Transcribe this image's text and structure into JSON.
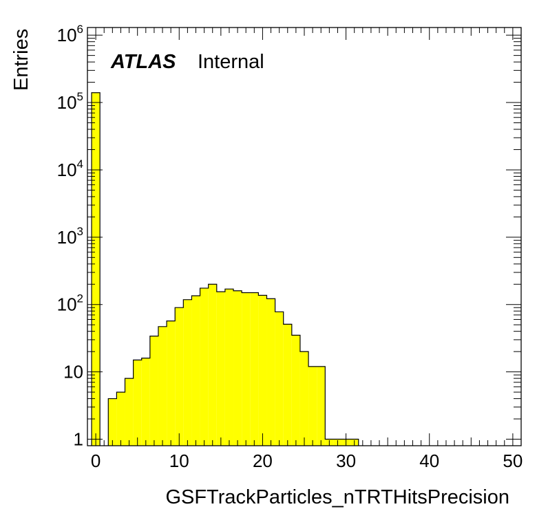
{
  "chart_data": {
    "type": "bar",
    "title": "",
    "xlabel": "GSFTrackParticles_nTRTHitsPrecision",
    "ylabel": "Entries",
    "xlim": [
      -1,
      51
    ],
    "ylim": [
      0.8,
      1300000
    ],
    "yscale": "log",
    "grid": false,
    "fill_color": "#ffff00",
    "edge_color": "#000000",
    "x_ticks": [
      {
        "value": 0,
        "label": "0"
      },
      {
        "value": 10,
        "label": "10"
      },
      {
        "value": 20,
        "label": "20"
      },
      {
        "value": 30,
        "label": "30"
      },
      {
        "value": 40,
        "label": "40"
      },
      {
        "value": 50,
        "label": "50"
      }
    ],
    "y_ticks": [
      {
        "value": 1,
        "base": "1",
        "exp": ""
      },
      {
        "value": 10,
        "base": "10",
        "exp": ""
      },
      {
        "value": 100,
        "base": "10",
        "exp": "2"
      },
      {
        "value": 1000,
        "base": "10",
        "exp": "3"
      },
      {
        "value": 10000,
        "base": "10",
        "exp": "4"
      },
      {
        "value": 100000,
        "base": "10",
        "exp": "5"
      },
      {
        "value": 1000000,
        "base": "10",
        "exp": "6"
      }
    ],
    "bin_edges": [
      -0.5,
      0.5,
      1.5,
      2.5,
      3.5,
      4.5,
      5.5,
      6.5,
      7.5,
      8.5,
      9.5,
      10.5,
      11.5,
      12.5,
      13.5,
      14.5,
      15.5,
      16.5,
      17.5,
      18.5,
      19.5,
      20.5,
      21.5,
      22.5,
      23.5,
      24.5,
      25.5,
      26.5,
      27.5,
      28.5,
      29.5,
      30.5,
      31.5,
      32.5,
      33.5,
      34.5,
      35.5,
      36.5,
      37.5,
      38.5,
      39.5,
      40.5,
      41.5,
      42.5,
      43.5,
      44.5,
      45.5,
      46.5,
      47.5,
      48.5,
      49.5,
      50.5
    ],
    "values": [
      140000,
      0,
      4,
      5,
      8,
      15,
      16,
      34,
      47,
      57,
      90,
      118,
      135,
      175,
      200,
      155,
      170,
      160,
      150,
      150,
      137,
      122,
      78,
      51,
      35,
      20,
      12,
      12,
      1,
      1,
      1,
      1,
      0,
      0,
      0,
      0,
      0,
      0,
      0,
      0,
      0,
      0,
      0,
      0,
      0,
      0,
      0,
      0,
      0,
      0,
      0
    ]
  },
  "labels": {
    "experiment": "ATLAS",
    "status": "Internal"
  }
}
